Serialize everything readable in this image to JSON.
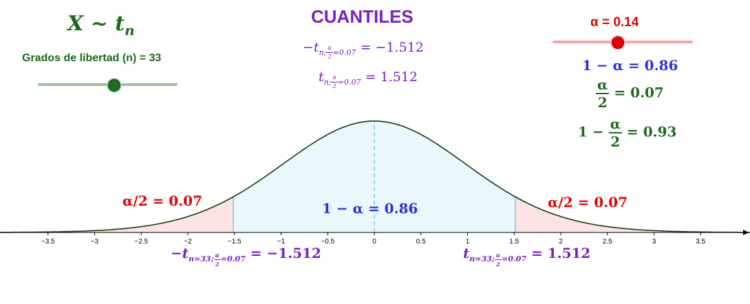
{
  "distribution_label": "X ~ t",
  "distribution_sub": "n",
  "df_slider": {
    "label": "Grados de libertad (n) = 33",
    "value": 33,
    "min": 1,
    "max": 50
  },
  "title": "CUANTILES",
  "quantile_neg_lhs": "−t",
  "quantile_neg_rhs": "= −1.512",
  "quantile_pos_lhs": "t",
  "quantile_pos_rhs": "= 1.512",
  "sub_n_alpha": "n;",
  "sub_alpha": "α",
  "sub_two": "2",
  "sub_eq": "=0.07",
  "alpha_slider": {
    "label": "α = 0.14",
    "value": 0.14,
    "min": 0,
    "max": 0.2
  },
  "one_minus_alpha_label": "1 − α = 0.86",
  "alpha_half_num": "α",
  "alpha_half_den": "2",
  "alpha_half_value": "= 0.07",
  "one_minus_half_prefix": "1 −",
  "one_minus_half_value": "= 0.93",
  "left_tail_label": "α/2 = 0.07",
  "right_tail_label": "α/2 = 0.07",
  "center_label": "1 − α = 0.86",
  "bottom_neg_lhs": "−t",
  "bottom_neg_rhs": "= −1.512",
  "bottom_pos_lhs": "t",
  "bottom_pos_rhs": "= 1.512",
  "bottom_sub_n": "n=33;",
  "colors": {
    "green": "#1b6b1b",
    "purple": "#7a1fc7",
    "red": "#e60000",
    "blue": "#2e2ee6",
    "center_fill": "#eaf7fc",
    "tail_fill": "#fde3e3",
    "curve": "#0f3a0f"
  },
  "chart_data": {
    "type": "area",
    "distribution": "t",
    "df": 33,
    "xlim": [
      -4,
      4
    ],
    "x_ticks": [
      "−3.5",
      "−3",
      "−2.5",
      "−2",
      "−1.5",
      "−1",
      "−0.5",
      "0",
      "0.5",
      "1",
      "1.5",
      "2",
      "2.5",
      "3",
      "3.5"
    ],
    "x_tick_values": [
      -3.5,
      -3,
      -2.5,
      -2,
      -1.5,
      -1,
      -0.5,
      0,
      0.5,
      1,
      1.5,
      2,
      2.5,
      3,
      3.5
    ],
    "critical_low": -1.512,
    "critical_high": 1.512,
    "alpha": 0.14
  }
}
